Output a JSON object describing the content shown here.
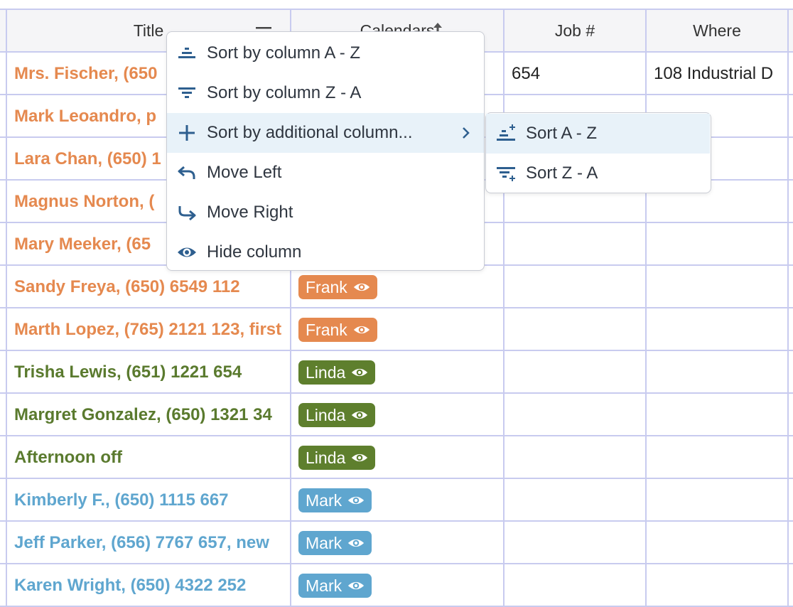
{
  "columns": [
    {
      "label": "Title"
    },
    {
      "label": "Calendars"
    },
    {
      "label": "Job #"
    },
    {
      "label": "Where"
    }
  ],
  "rows": [
    {
      "title": "Mrs. Fischer, (650",
      "title_color": "#e5894f",
      "job": "654",
      "where": "108 Industrial D"
    },
    {
      "title": "Mark Leoandro, p",
      "title_color": "#e5894f"
    },
    {
      "title": "Lara Chan, (650) 1",
      "title_color": "#e5894f"
    },
    {
      "title": "Magnus Norton, (",
      "title_color": "#e5894f"
    },
    {
      "title": "Mary Meeker, (65",
      "title_color": "#e5894f"
    },
    {
      "title": "Sandy Freya, (650) 6549 112",
      "title_color": "#e5894f",
      "calendar": "Frank",
      "calendar_color": "#e5894f"
    },
    {
      "title": "Marth Lopez, (765) 2121 123, first",
      "title_color": "#e5894f",
      "calendar": "Frank",
      "calendar_color": "#e5894f"
    },
    {
      "title": "Trisha Lewis, (651) 1221 654",
      "title_color": "#5a7a2e",
      "calendar": "Linda",
      "calendar_color": "#5e7f2d"
    },
    {
      "title": "Margret Gonzalez, (650) 1321 34",
      "title_color": "#5a7a2e",
      "calendar": "Linda",
      "calendar_color": "#5e7f2d"
    },
    {
      "title": "Afternoon off",
      "title_color": "#5a7a2e",
      "calendar": "Linda",
      "calendar_color": "#5e7f2d"
    },
    {
      "title": "Kimberly F., (650) 1115 667",
      "title_color": "#5fa6cf",
      "calendar": "Mark",
      "calendar_color": "#5fa6cf"
    },
    {
      "title": "Jeff Parker, (656) 7767 657, new",
      "title_color": "#5fa6cf",
      "calendar": "Mark",
      "calendar_color": "#5fa6cf"
    },
    {
      "title": "Karen Wright, (650) 4322 252",
      "title_color": "#5fa6cf",
      "calendar": "Mark",
      "calendar_color": "#5fa6cf"
    }
  ],
  "context_menu": {
    "items": [
      {
        "label": "Sort by column A - Z",
        "icon": "sort-asc-icon"
      },
      {
        "label": "Sort by column Z - A",
        "icon": "sort-desc-icon"
      },
      {
        "label": "Sort by additional column...",
        "icon": "plus-icon",
        "has_submenu": true
      },
      {
        "label": "Move Left",
        "icon": "move-left-icon"
      },
      {
        "label": "Move Right",
        "icon": "move-right-icon"
      },
      {
        "label": "Hide column",
        "icon": "eye-icon"
      }
    ]
  },
  "submenu": {
    "items": [
      {
        "label": "Sort A - Z",
        "icon": "sort-add-asc-icon"
      },
      {
        "label": "Sort Z - A",
        "icon": "sort-add-desc-icon"
      }
    ]
  },
  "colors": {
    "accent": "#2e5f8f",
    "grid_line": "#c8cbef",
    "menu_hover": "#e8f2f9"
  }
}
